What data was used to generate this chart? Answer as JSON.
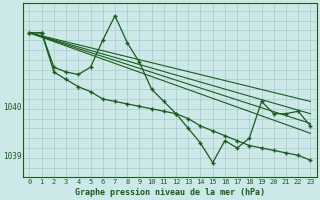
{
  "title": "Graphe pression niveau de la mer (hPa)",
  "background_color": "#cce8e8",
  "plot_bg_color": "#cce8e8",
  "grid_color": "#aacccc",
  "line_color": "#1a5c1a",
  "xlim": [
    -0.5,
    23.5
  ],
  "ylim": [
    1038.55,
    1042.1
  ],
  "yticks": [
    1039,
    1040
  ],
  "xticks": [
    0,
    1,
    2,
    3,
    4,
    5,
    6,
    7,
    8,
    9,
    10,
    11,
    12,
    13,
    14,
    15,
    16,
    17,
    18,
    19,
    20,
    21,
    22,
    23
  ],
  "series1_x": [
    0,
    1,
    2,
    3,
    4,
    5,
    6,
    7,
    8,
    9,
    10,
    11,
    12,
    13,
    14,
    15,
    16,
    17,
    18,
    19,
    20,
    21,
    22,
    23
  ],
  "series1_y": [
    1041.5,
    1041.5,
    1040.8,
    1040.7,
    1040.65,
    1040.8,
    1041.35,
    1041.85,
    1041.3,
    1040.9,
    1040.35,
    1040.1,
    1039.85,
    1039.55,
    1039.25,
    1038.85,
    1039.3,
    1039.15,
    1039.35,
    1040.1,
    1039.85,
    1039.85,
    1039.9,
    1039.6
  ],
  "series2_x": [
    0,
    1,
    2,
    3,
    4,
    5,
    6,
    7,
    8,
    9,
    10,
    11,
    12,
    13,
    14,
    15,
    16,
    17,
    18,
    19,
    20,
    21,
    22,
    23
  ],
  "series2_y": [
    1041.5,
    1041.5,
    1040.7,
    1040.55,
    1040.4,
    1040.3,
    1040.15,
    1040.1,
    1040.05,
    1040.0,
    1039.95,
    1039.9,
    1039.85,
    1039.75,
    1039.6,
    1039.5,
    1039.4,
    1039.3,
    1039.2,
    1039.15,
    1039.1,
    1039.05,
    1039.0,
    1038.9
  ],
  "trend1_x": [
    0,
    23
  ],
  "trend1_y": [
    1041.5,
    1040.1
  ],
  "trend2_x": [
    0,
    23
  ],
  "trend2_y": [
    1041.5,
    1039.85
  ],
  "trend3_x": [
    0,
    23
  ],
  "trend3_y": [
    1041.5,
    1039.65
  ],
  "trend4_x": [
    0,
    23
  ],
  "trend4_y": [
    1041.5,
    1039.45
  ]
}
